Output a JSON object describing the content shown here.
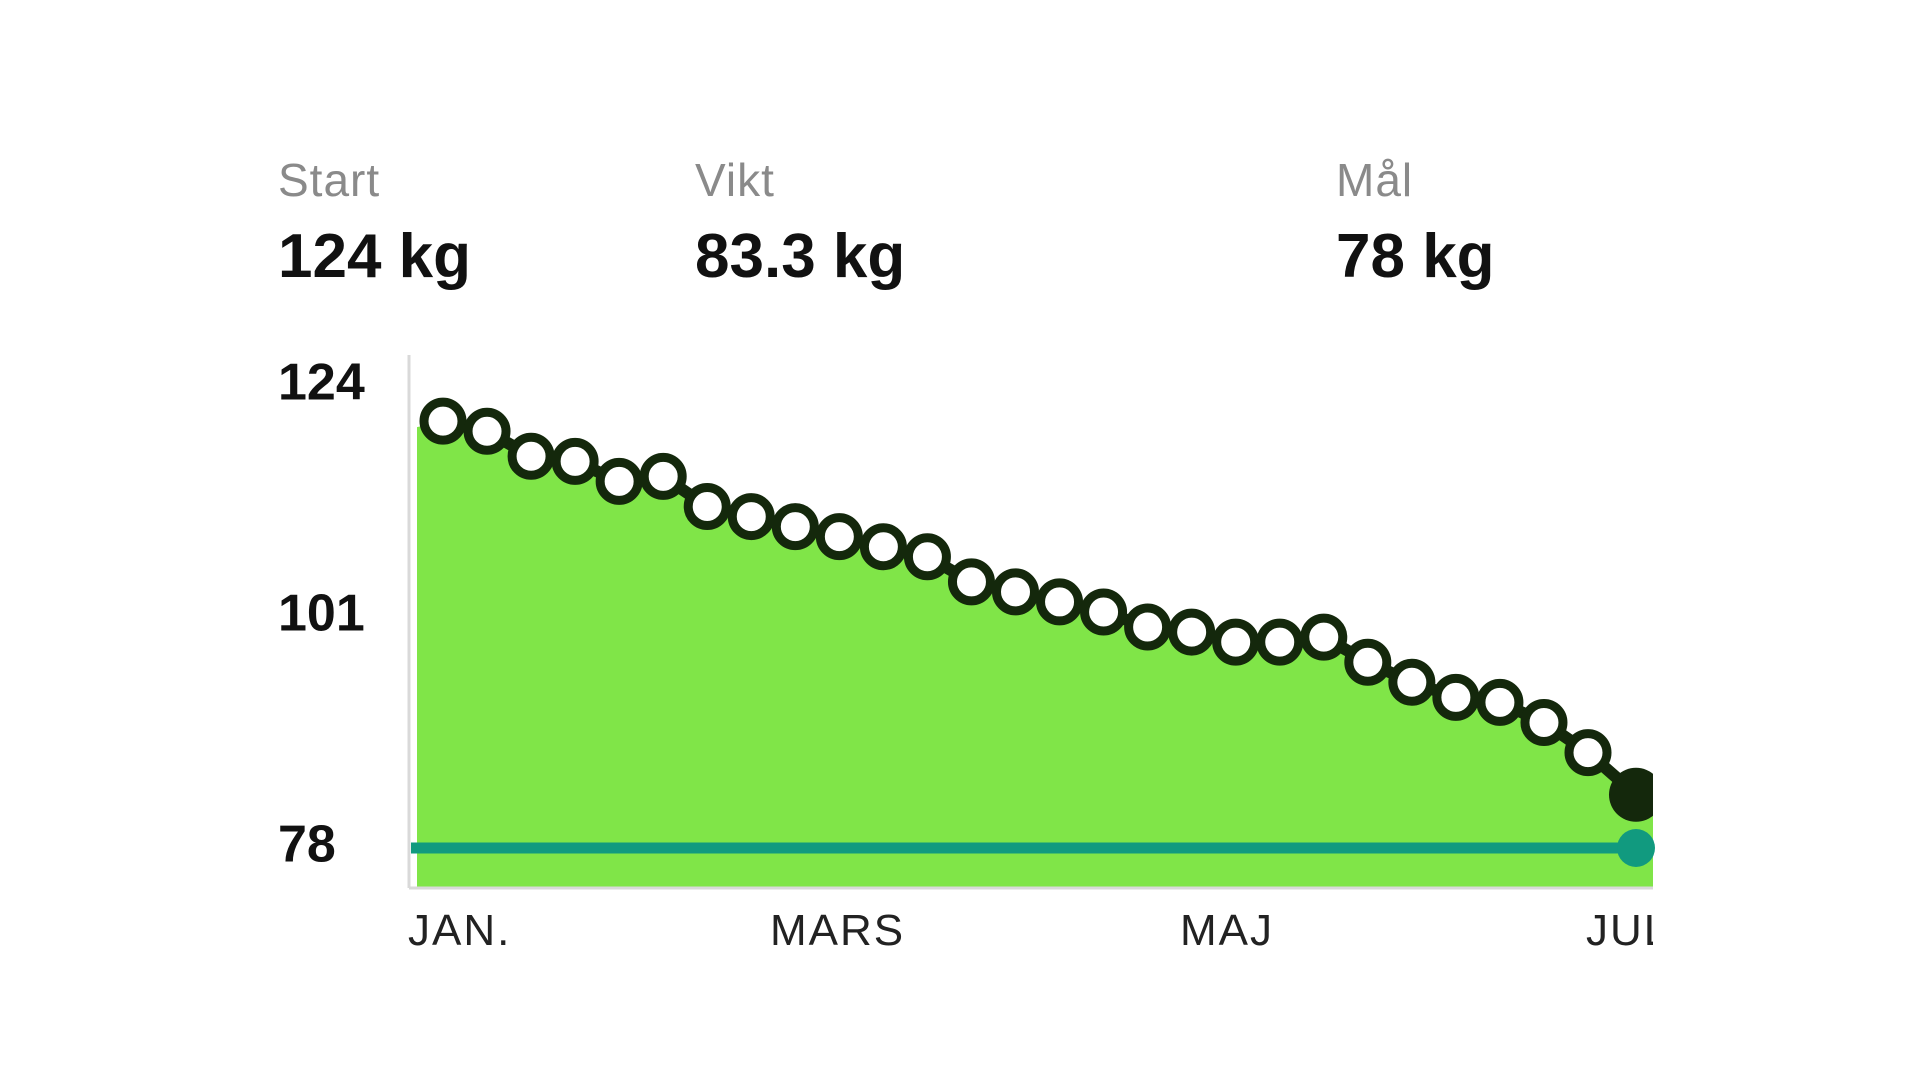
{
  "stats": {
    "start": {
      "label": "Start",
      "value": "124 kg"
    },
    "weight": {
      "label": "Vikt",
      "value": "83.3 kg"
    },
    "goal": {
      "label": "Mål",
      "value": "78 kg"
    }
  },
  "chart_data": {
    "type": "area",
    "title": "",
    "xlabel": "",
    "ylabel": "",
    "ylim": [
      78,
      124
    ],
    "y_ticks": [
      "124",
      "101",
      "78"
    ],
    "x_ticks": [
      "JAN.",
      "MARS",
      "MAJ",
      "JUL"
    ],
    "grid": false,
    "goal_line": 78,
    "series": [
      {
        "values": [
          120.5,
          119.5,
          117.0,
          116.5,
          114.5,
          115.0,
          112.0,
          111.0,
          110.0,
          109.0,
          108.0,
          107.0,
          104.5,
          103.5,
          102.5,
          101.5,
          100.0,
          99.5,
          98.5,
          98.5,
          99.0,
          96.5,
          94.5,
          93.0,
          92.5,
          90.5,
          87.5
        ]
      }
    ],
    "current": 83.3
  },
  "colors": {
    "area_fill": "#80e548",
    "line": "#14280c",
    "marker_fill": "#ffffff",
    "goal_line": "#119a7f",
    "axis": "#d9d9d9"
  }
}
